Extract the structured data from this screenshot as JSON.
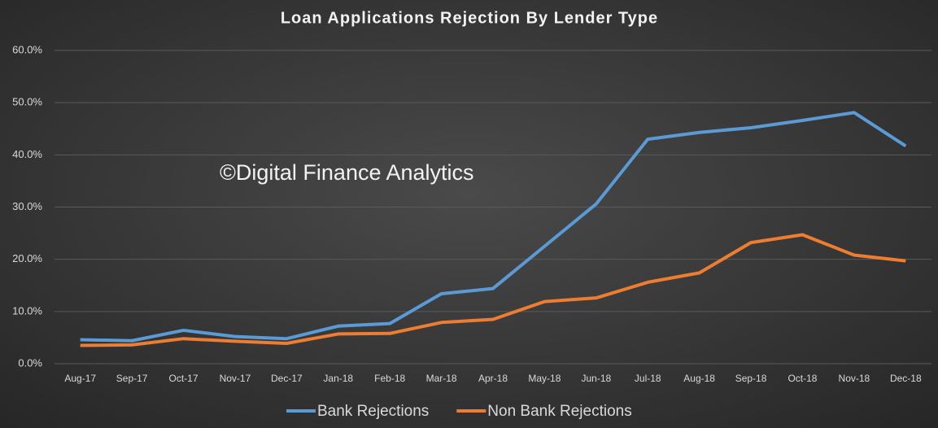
{
  "chart_data": {
    "type": "line",
    "title": "Loan Applications Rejection By Lender Type",
    "annotation": "©Digital Finance Analytics",
    "categories": [
      "Aug-17",
      "Sep-17",
      "Oct-17",
      "Nov-17",
      "Dec-17",
      "Jan-18",
      "Feb-18",
      "Mar-18",
      "Apr-18",
      "May-18",
      "Jun-18",
      "Jul-18",
      "Aug-18",
      "Sep-18",
      "Oct-18",
      "Nov-18",
      "Dec-18"
    ],
    "series": [
      {
        "name": "Bank Rejections",
        "color": "#5b9bd5",
        "values": [
          4.6,
          4.4,
          6.4,
          5.2,
          4.8,
          7.2,
          7.7,
          13.4,
          14.4,
          22.5,
          30.6,
          43.0,
          44.3,
          45.2,
          46.6,
          48.1,
          41.7
        ]
      },
      {
        "name": "Non Bank Rejections",
        "color": "#ed7d31",
        "values": [
          3.5,
          3.6,
          4.8,
          4.3,
          3.9,
          5.7,
          5.8,
          7.9,
          8.5,
          11.9,
          12.6,
          15.6,
          17.4,
          23.2,
          24.7,
          20.8,
          19.7
        ]
      }
    ],
    "ylim": [
      0,
      60
    ],
    "yticks": [
      {
        "value": 0,
        "label": "0.0%"
      },
      {
        "value": 10,
        "label": "10.0%"
      },
      {
        "value": 20,
        "label": "20.0%"
      },
      {
        "value": 30,
        "label": "30.0%"
      },
      {
        "value": 40,
        "label": "40.0%"
      },
      {
        "value": 50,
        "label": "50.0%"
      },
      {
        "value": 60,
        "label": "60.0%"
      }
    ],
    "grid": true,
    "legend": "bottom"
  }
}
